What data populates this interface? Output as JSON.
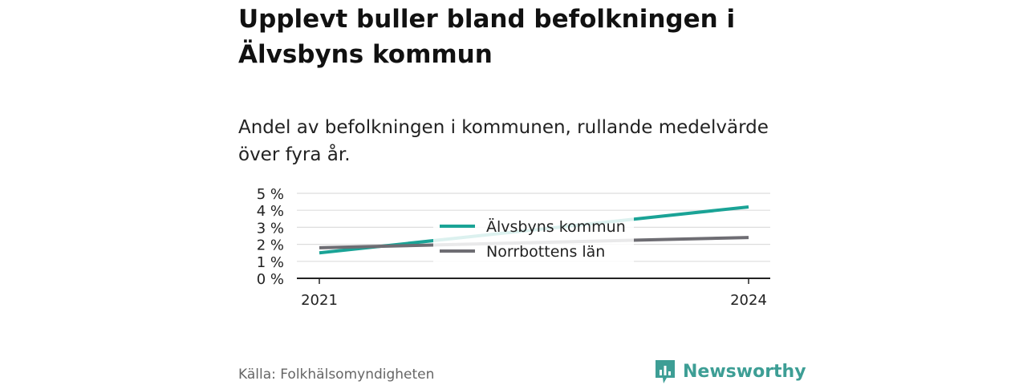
{
  "title": "Upplevt buller bland befolkningen i Älvsbyns kommun",
  "subtitle": "Andel av befolkningen i kommunen, rullande medelvärde över fyra år.",
  "source": "Källa: Folkhälsomyndigheten",
  "logo": {
    "text": "Newsworthy",
    "icon": "newsworthy-bar-chart-icon",
    "color": "#3d9e95"
  },
  "chart_data": {
    "type": "line",
    "x": [
      "2021",
      "2024"
    ],
    "y_ticks": [
      "0 %",
      "1 %",
      "2 %",
      "3 %",
      "4 %",
      "5 %"
    ],
    "ylim": [
      0,
      5
    ],
    "grid": true,
    "legend_position": "center",
    "series": [
      {
        "name": "Älvsbyns kommun",
        "values": [
          1.5,
          4.2
        ],
        "color": "#1aa396"
      },
      {
        "name": "Norrbottens län",
        "values": [
          1.8,
          2.4
        ],
        "color": "#6e6d73"
      }
    ]
  }
}
